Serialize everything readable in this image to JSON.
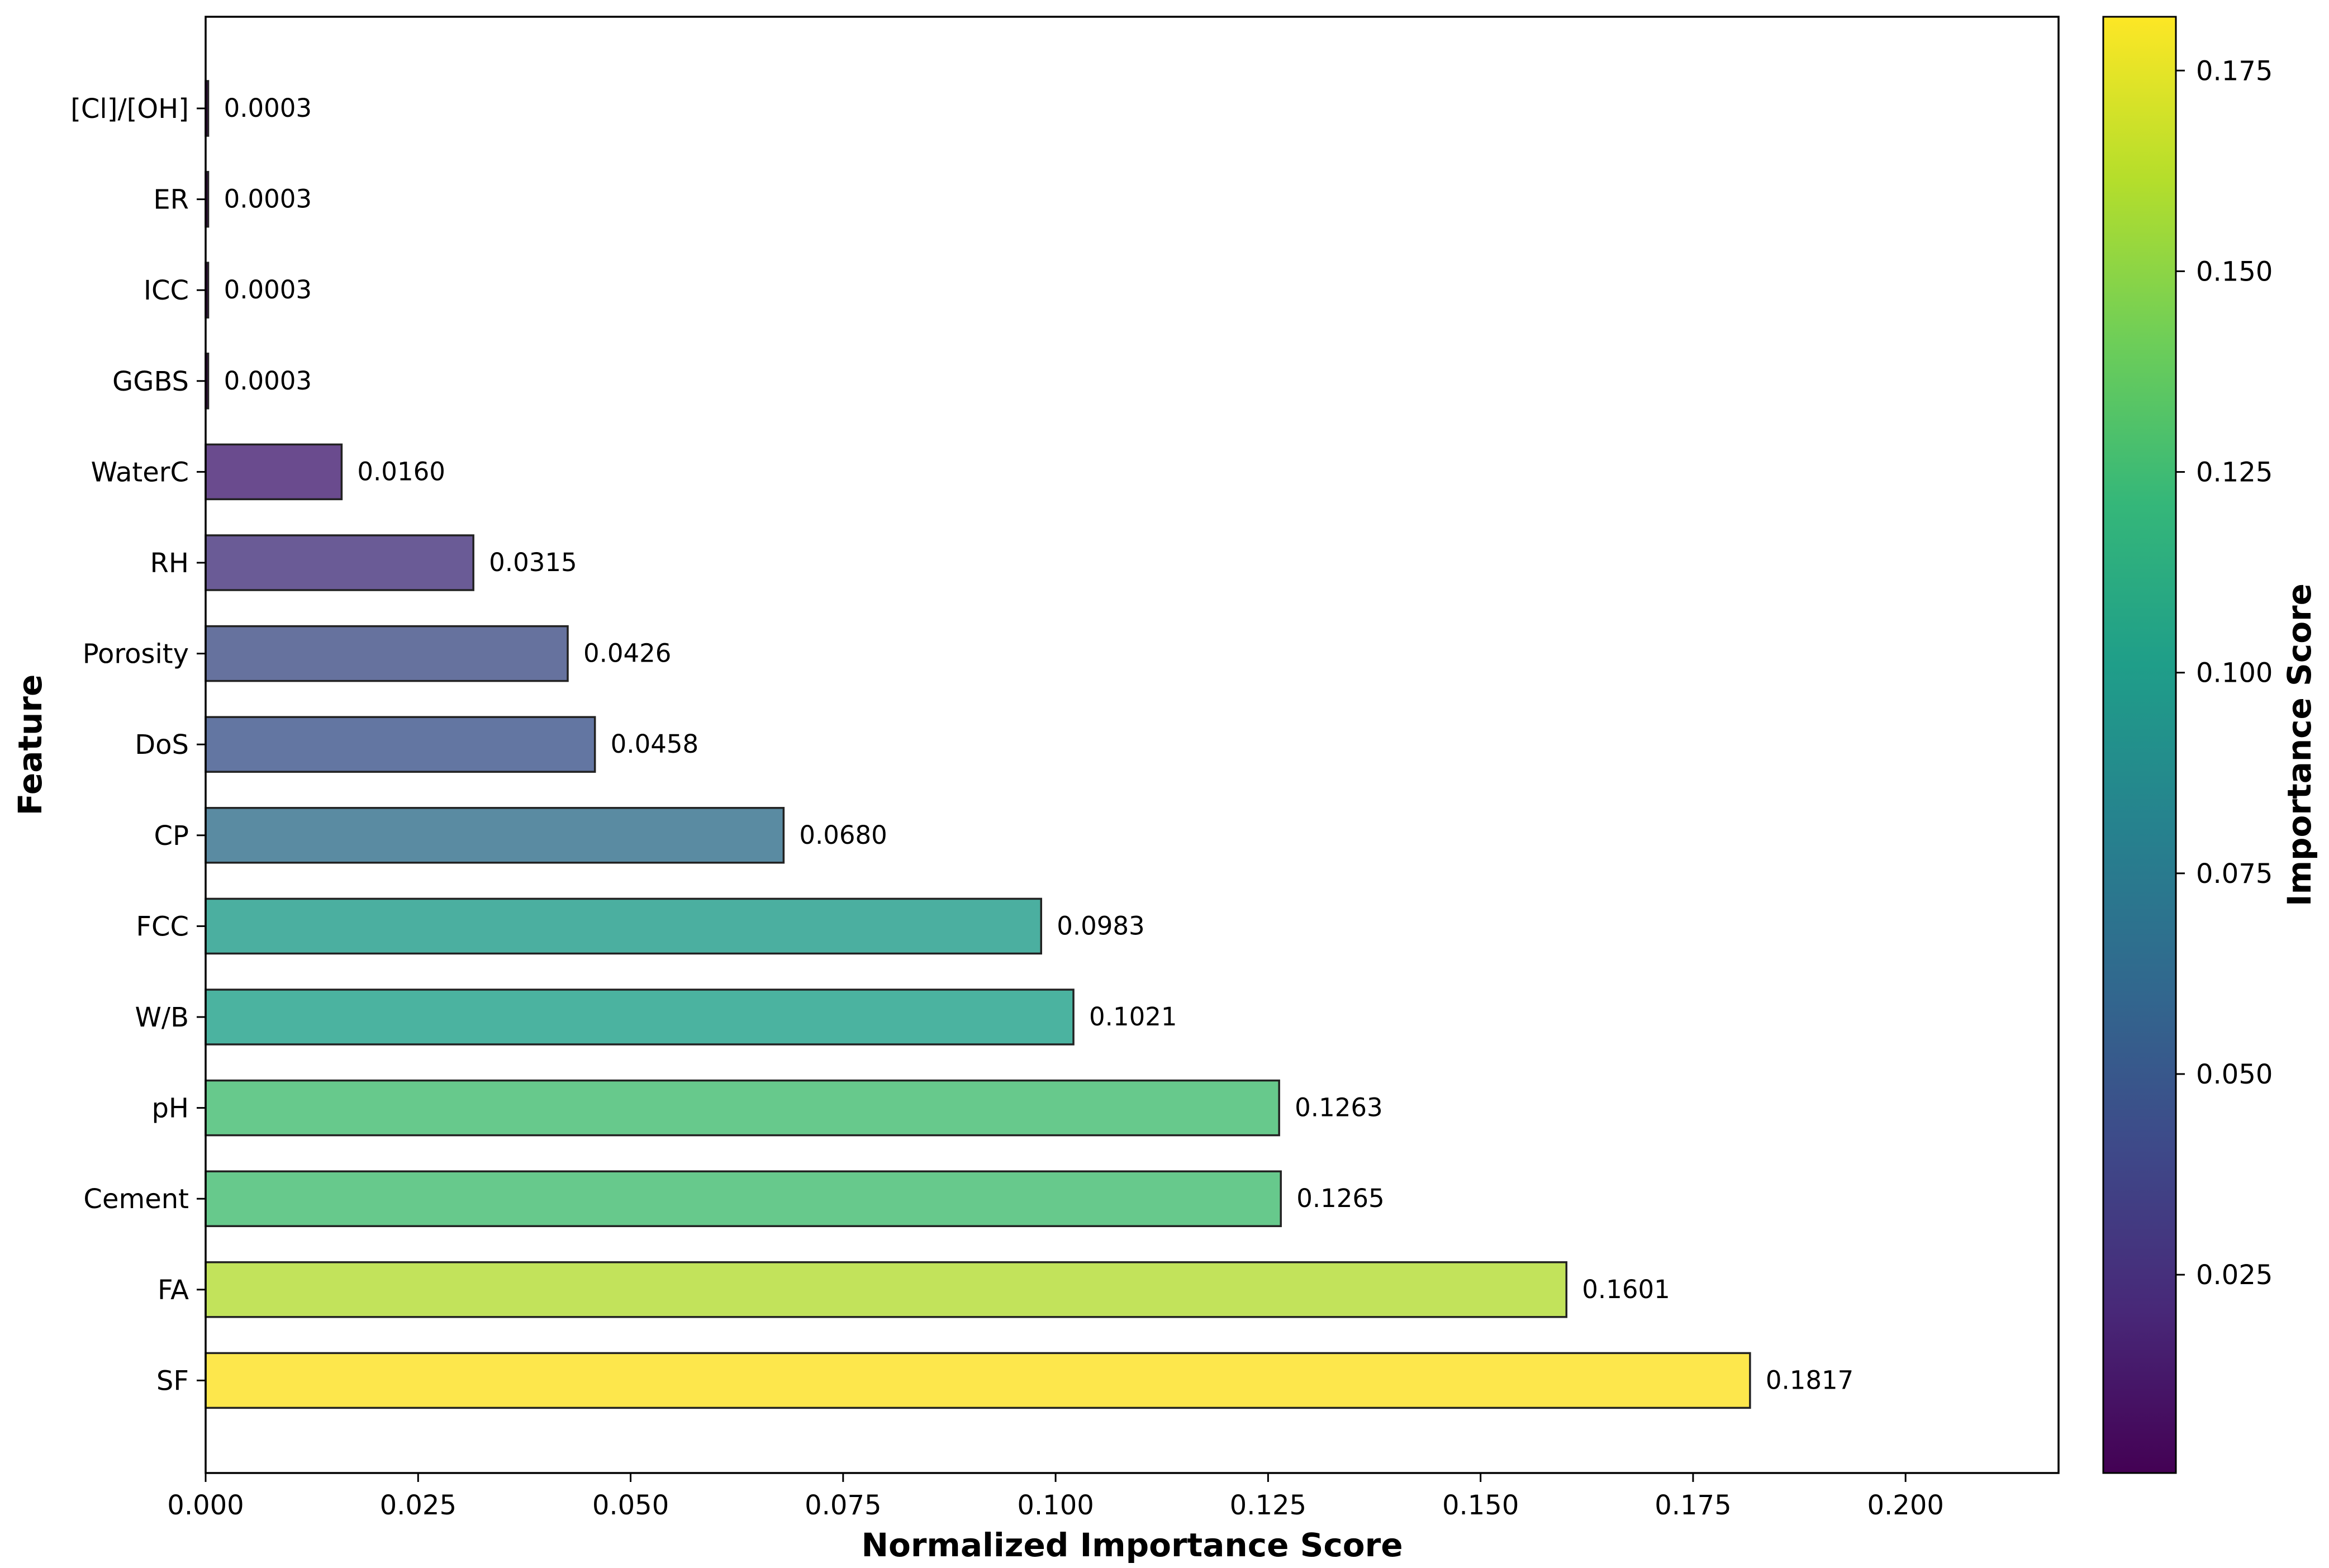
{
  "chart_data": {
    "type": "bar",
    "orientation": "horizontal",
    "xlabel": "Normalized Importance Score",
    "ylabel": "Feature",
    "xlim": [
      0,
      0.218
    ],
    "xticks": [
      0.0,
      0.025,
      0.05,
      0.075,
      0.1,
      0.125,
      0.15,
      0.175,
      0.2
    ],
    "xtick_labels": [
      "0.000",
      "0.025",
      "0.050",
      "0.075",
      "0.100",
      "0.125",
      "0.150",
      "0.175",
      "0.200"
    ],
    "categories": [
      "[Cl]/[OH]",
      "ER",
      "ICC",
      "GGBS",
      "WaterC",
      "RH",
      "Porosity",
      "DoS",
      "CP",
      "FCC",
      "W/B",
      "pH",
      "Cement",
      "FA",
      "SF"
    ],
    "values": [
      0.0003,
      0.0003,
      0.0003,
      0.0003,
      0.016,
      0.0315,
      0.0426,
      0.0458,
      0.068,
      0.0983,
      0.1021,
      0.1263,
      0.1265,
      0.1601,
      0.1817
    ],
    "value_labels": [
      "0.0003",
      "0.0003",
      "0.0003",
      "0.0003",
      "0.0160",
      "0.0315",
      "0.0426",
      "0.0458",
      "0.0680",
      "0.0983",
      "0.1021",
      "0.1263",
      "0.1265",
      "0.1601",
      "0.1817"
    ],
    "bar_colors": [
      "#440154",
      "#440154",
      "#440154",
      "#440154",
      "#6a4b8e",
      "#6a5b96",
      "#66729e",
      "#6376a2",
      "#5a8ba2",
      "#4bafa0",
      "#4bb3a0",
      "#67c98c",
      "#67c98c",
      "#c2e35b",
      "#fde74c"
    ],
    "colorbar": {
      "label": "Importance Score",
      "range": [
        0.0003,
        0.1817
      ],
      "ticks": [
        0.025,
        0.05,
        0.075,
        0.1,
        0.125,
        0.15,
        0.175
      ],
      "tick_labels": [
        "0.025",
        "0.050",
        "0.075",
        "0.100",
        "0.125",
        "0.150",
        "0.175"
      ],
      "colormap": "viridis",
      "stops": [
        "#440154",
        "#482878",
        "#3e4989",
        "#31688e",
        "#26828e",
        "#1f9e89",
        "#35b779",
        "#6ece58",
        "#b5de2b",
        "#fde725"
      ]
    }
  }
}
